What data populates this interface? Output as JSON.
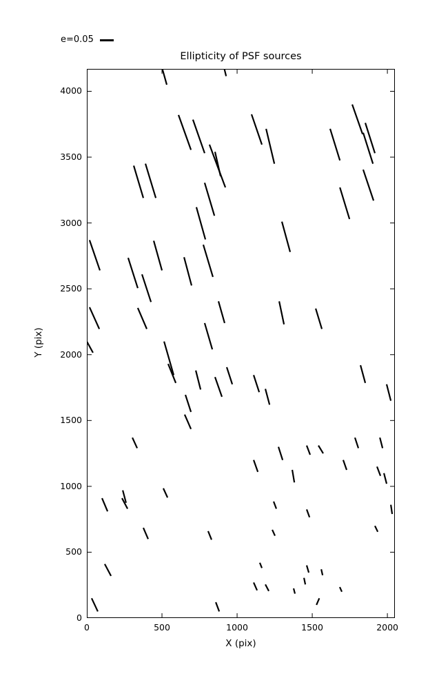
{
  "figure": {
    "background": "#ffffff",
    "line_color": "#000000"
  },
  "legend": {
    "label": "e=0.05"
  },
  "chart_data": {
    "type": "scatter",
    "variant": "ellipticity-stick-plot",
    "title": "Ellipticity of PSF sources",
    "xlabel": "X (pix)",
    "ylabel": "Y (pix)",
    "xlim": [
      0,
      2050
    ],
    "ylim": [
      0,
      4170
    ],
    "xticks": [
      0,
      500,
      1000,
      1500,
      2000
    ],
    "yticks": [
      0,
      500,
      1000,
      1500,
      2000,
      2500,
      3000,
      3500,
      4000
    ],
    "grid": false,
    "legend": {
      "label": "e=0.05",
      "position": "figure-top-left"
    },
    "stick_color": "#000000",
    "stick_width": 2.2,
    "segments": [
      [
        500,
        4180,
        532,
        4050
      ],
      [
        610,
        3820,
        693,
        3555
      ],
      [
        312,
        3435,
        376,
        3190
      ],
      [
        390,
        3450,
        459,
        3190
      ],
      [
        913,
        4180,
        927,
        4115
      ],
      [
        706,
        3785,
        784,
        3530
      ],
      [
        816,
        3595,
        922,
        3270
      ],
      [
        853,
        3540,
        890,
        3355
      ],
      [
        1096,
        3825,
        1165,
        3595
      ],
      [
        1193,
        3715,
        1248,
        3450
      ],
      [
        784,
        3305,
        849,
        3055
      ],
      [
        1766,
        3900,
        1835,
        3675
      ],
      [
        1853,
        3760,
        1917,
        3530
      ],
      [
        1839,
        3685,
        1904,
        3450
      ],
      [
        1619,
        3715,
        1684,
        3475
      ],
      [
        1839,
        3405,
        1908,
        3170
      ],
      [
        1684,
        3270,
        1748,
        3030
      ],
      [
        18,
        2870,
        87,
        2640
      ],
      [
        275,
        2735,
        339,
        2505
      ],
      [
        445,
        2865,
        500,
        2640
      ],
      [
        647,
        2740,
        697,
        2525
      ],
      [
        367,
        2610,
        427,
        2400
      ],
      [
        339,
        2355,
        399,
        2195
      ],
      [
        18,
        2360,
        83,
        2195
      ],
      [
        729,
        3120,
        789,
        2875
      ],
      [
        775,
        2835,
        839,
        2590
      ],
      [
        1298,
        3010,
        1353,
        2780
      ],
      [
        876,
        2405,
        917,
        2240
      ],
      [
        784,
        2240,
        835,
        2040
      ],
      [
        1280,
        2405,
        1312,
        2230
      ],
      [
        1523,
        2350,
        1564,
        2195
      ],
      [
        0,
        2100,
        41,
        2015
      ],
      [
        514,
        2100,
        578,
        1845
      ],
      [
        541,
        1930,
        592,
        1785
      ],
      [
        656,
        1695,
        693,
        1565
      ],
      [
        651,
        1545,
        693,
        1435
      ],
      [
        303,
        1370,
        335,
        1290
      ],
      [
        725,
        1880,
        757,
        1735
      ],
      [
        853,
        1830,
        899,
        1680
      ],
      [
        931,
        1905,
        968,
        1775
      ],
      [
        1110,
        1845,
        1147,
        1715
      ],
      [
        1188,
        1740,
        1216,
        1620
      ],
      [
        1275,
        1300,
        1303,
        1200
      ],
      [
        1110,
        1200,
        1138,
        1110
      ],
      [
        1821,
        1920,
        1853,
        1785
      ],
      [
        1995,
        1775,
        2023,
        1650
      ],
      [
        1784,
        1370,
        1807,
        1290
      ],
      [
        1950,
        1370,
        1968,
        1290
      ],
      [
        1463,
        1310,
        1486,
        1240
      ],
      [
        1541,
        1310,
        1573,
        1250
      ],
      [
        1706,
        1200,
        1729,
        1125
      ],
      [
        1931,
        1150,
        1954,
        1080
      ],
      [
        1977,
        1100,
        1995,
        1020
      ],
      [
        1367,
        1125,
        1381,
        1030
      ],
      [
        101,
        910,
        138,
        810
      ],
      [
        239,
        970,
        261,
        875
      ],
      [
        234,
        910,
        271,
        830
      ],
      [
        509,
        985,
        537,
        915
      ],
      [
        376,
        685,
        408,
        600
      ],
      [
        119,
        410,
        161,
        320
      ],
      [
        32,
        150,
        73,
        50
      ],
      [
        1243,
        885,
        1261,
        830
      ],
      [
        807,
        660,
        830,
        595
      ],
      [
        1234,
        670,
        1252,
        625
      ],
      [
        1151,
        420,
        1165,
        380
      ],
      [
        1110,
        270,
        1133,
        210
      ],
      [
        1188,
        255,
        1211,
        205
      ],
      [
        858,
        120,
        881,
        50
      ],
      [
        1463,
        825,
        1482,
        765
      ],
      [
        2023,
        860,
        2032,
        790
      ],
      [
        1917,
        700,
        1936,
        655
      ],
      [
        1463,
        400,
        1477,
        345
      ],
      [
        1560,
        370,
        1569,
        325
      ],
      [
        1445,
        305,
        1454,
        255
      ],
      [
        1376,
        225,
        1385,
        185
      ],
      [
        1683,
        235,
        1697,
        200
      ],
      [
        1547,
        150,
        1528,
        100
      ]
    ]
  }
}
